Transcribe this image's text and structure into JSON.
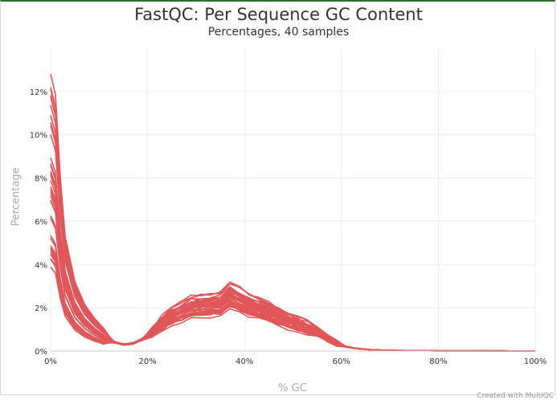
{
  "chart_data": {
    "type": "line",
    "title": "FastQC: Per Sequence GC Content",
    "subtitle": "Percentages, 40 samples",
    "xlabel": "% GC",
    "ylabel": "Percentage",
    "xlim": [
      0,
      100
    ],
    "ylim": [
      0,
      14
    ],
    "xticks": [
      "0%",
      "20%",
      "40%",
      "60%",
      "80%",
      "100%"
    ],
    "yticks": [
      "0%",
      "2%",
      "4%",
      "6%",
      "8%",
      "10%",
      "12%"
    ],
    "grid": true,
    "line_color": "#e15759",
    "sample_count": 40,
    "base_profile": {
      "x": [
        0,
        1,
        2,
        3,
        5,
        7,
        9,
        11,
        13,
        15,
        17,
        19,
        21,
        23,
        25,
        27,
        29,
        31,
        33,
        35,
        37,
        39,
        41,
        43,
        45,
        47,
        49,
        51,
        53,
        55,
        57,
        59,
        61,
        63,
        66,
        70,
        75,
        80,
        90,
        100
      ],
      "y": [
        8.0,
        7.4,
        5.0,
        3.3,
        2.0,
        1.35,
        0.95,
        0.65,
        0.42,
        0.3,
        0.35,
        0.55,
        0.85,
        1.25,
        1.55,
        1.75,
        1.95,
        2.0,
        2.05,
        2.1,
        2.45,
        2.25,
        2.05,
        1.9,
        1.75,
        1.55,
        1.35,
        1.2,
        1.05,
        0.85,
        0.6,
        0.35,
        0.2,
        0.12,
        0.06,
        0.03,
        0.02,
        0.01,
        0.01,
        0.0
      ]
    }
  },
  "footer": {
    "credit": "Created with MultiQC"
  }
}
